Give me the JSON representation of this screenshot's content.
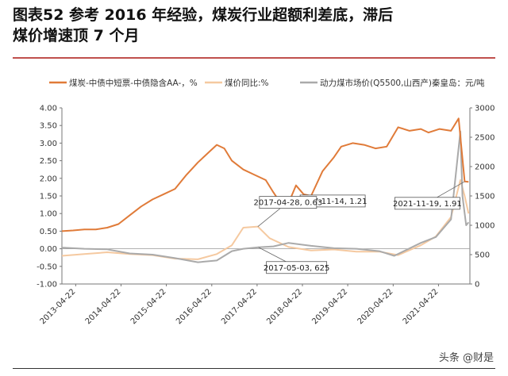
{
  "header": {
    "title_line1": "图表52    参考 2016 年经验，煤炭行业超额利差底，滞后",
    "title_line2": "煤价增速顶 7 个月"
  },
  "watermark": "头条 @财是",
  "chart_data": {
    "type": "line",
    "title": "",
    "legend": [
      {
        "name": "煤炭-中债中短票-中债隐含AA-，%",
        "color": "#e07b39"
      },
      {
        "name": "煤价同比:%",
        "color": "#f5c9a0"
      },
      {
        "name": "动力煤市场价(Q5500,山西产)秦皇岛：元/吨",
        "color": "#aaaaaa"
      }
    ],
    "legend_position": "top",
    "x_ticks": [
      "2013-04-22",
      "2014-04-22",
      "2015-04-22",
      "2016-04-22",
      "2017-04-22",
      "2018-04-22",
      "2019-04-22",
      "2020-04-22",
      "2021-04-22"
    ],
    "x_range": [
      "2013-01-01",
      "2021-12-31"
    ],
    "y_left": {
      "ticks": [
        "-1.00",
        "-0.50",
        "0.00",
        "0.50",
        "1.00",
        "1.50",
        "2.00",
        "2.50",
        "3.00",
        "3.50",
        "4.00"
      ],
      "range": [
        -1.0,
        4.0
      ]
    },
    "y_right": {
      "ticks": [
        "0",
        "500",
        "1000",
        "1500",
        "2000",
        "2500",
        "3000"
      ],
      "range": [
        0,
        3000
      ]
    },
    "annotations": [
      {
        "label": "2017-11-14, 1.21",
        "x": "2017-11-14",
        "y": 1.21,
        "axis": "left"
      },
      {
        "label": "2017-04-28, 0.63",
        "x": "2017-04-28",
        "y": 0.63,
        "axis": "left"
      },
      {
        "label": "2017-05-03, 625",
        "x": "2017-05-03",
        "y": 625,
        "axis": "right"
      },
      {
        "label": "2021-11-19, 1.91",
        "x": "2021-11-19",
        "y": 1.91,
        "axis": "left"
      }
    ],
    "series": [
      {
        "name": "煤炭-中债中短票-中债隐含AA-，%",
        "axis": "left",
        "color": "#e07b39",
        "points": [
          [
            "2013-01-01",
            0.5
          ],
          [
            "2013-04-01",
            0.52
          ],
          [
            "2013-07-01",
            0.55
          ],
          [
            "2013-10-01",
            0.55
          ],
          [
            "2014-01-01",
            0.6
          ],
          [
            "2014-04-01",
            0.7
          ],
          [
            "2014-07-01",
            0.95
          ],
          [
            "2014-10-01",
            1.2
          ],
          [
            "2015-01-01",
            1.4
          ],
          [
            "2015-04-01",
            1.55
          ],
          [
            "2015-07-01",
            1.7
          ],
          [
            "2015-10-01",
            2.1
          ],
          [
            "2016-01-01",
            2.45
          ],
          [
            "2016-04-01",
            2.75
          ],
          [
            "2016-06-01",
            2.95
          ],
          [
            "2016-08-01",
            2.85
          ],
          [
            "2016-10-01",
            2.5
          ],
          [
            "2017-01-01",
            2.25
          ],
          [
            "2017-04-01",
            2.1
          ],
          [
            "2017-07-01",
            1.95
          ],
          [
            "2017-09-01",
            1.6
          ],
          [
            "2017-11-14",
            1.21
          ],
          [
            "2018-01-01",
            1.3
          ],
          [
            "2018-03-01",
            1.8
          ],
          [
            "2018-05-01",
            1.55
          ],
          [
            "2018-07-01",
            1.5
          ],
          [
            "2018-10-01",
            2.2
          ],
          [
            "2019-01-01",
            2.6
          ],
          [
            "2019-03-01",
            2.9
          ],
          [
            "2019-06-01",
            3.0
          ],
          [
            "2019-09-01",
            2.95
          ],
          [
            "2019-12-01",
            2.85
          ],
          [
            "2020-03-01",
            2.9
          ],
          [
            "2020-06-01",
            3.45
          ],
          [
            "2020-09-01",
            3.35
          ],
          [
            "2020-12-01",
            3.4
          ],
          [
            "2021-02-01",
            3.3
          ],
          [
            "2021-05-01",
            3.4
          ],
          [
            "2021-08-01",
            3.35
          ],
          [
            "2021-10-01",
            3.7
          ],
          [
            "2021-11-19",
            1.91
          ],
          [
            "2021-12-20",
            1.9
          ]
        ]
      },
      {
        "name": "煤价同比:%",
        "axis": "left",
        "color": "#f5c9a0",
        "points": [
          [
            "2013-01-01",
            -0.2
          ],
          [
            "2013-07-01",
            -0.15
          ],
          [
            "2014-01-01",
            -0.1
          ],
          [
            "2014-07-01",
            -0.15
          ],
          [
            "2015-01-01",
            -0.18
          ],
          [
            "2015-07-01",
            -0.28
          ],
          [
            "2016-01-01",
            -0.3
          ],
          [
            "2016-06-01",
            -0.15
          ],
          [
            "2016-10-01",
            0.1
          ],
          [
            "2017-01-01",
            0.6
          ],
          [
            "2017-04-28",
            0.63
          ],
          [
            "2017-08-01",
            0.3
          ],
          [
            "2018-01-01",
            0.05
          ],
          [
            "2018-07-01",
            -0.05
          ],
          [
            "2019-01-01",
            -0.02
          ],
          [
            "2019-07-01",
            -0.08
          ],
          [
            "2020-01-01",
            -0.08
          ],
          [
            "2020-06-01",
            -0.18
          ],
          [
            "2020-12-01",
            0.1
          ],
          [
            "2021-04-01",
            0.35
          ],
          [
            "2021-08-01",
            0.9
          ],
          [
            "2021-10-15",
            1.95
          ],
          [
            "2021-11-19",
            1.5
          ],
          [
            "2021-12-20",
            1.0
          ]
        ]
      },
      {
        "name": "动力煤市场价(Q5500,山西产)秦皇岛：元/吨",
        "axis": "right",
        "color": "#aaaaaa",
        "points": [
          [
            "2013-01-01",
            620
          ],
          [
            "2013-07-01",
            600
          ],
          [
            "2014-01-01",
            590
          ],
          [
            "2014-07-01",
            520
          ],
          [
            "2015-01-01",
            500
          ],
          [
            "2015-07-01",
            440
          ],
          [
            "2016-01-01",
            370
          ],
          [
            "2016-06-01",
            400
          ],
          [
            "2016-10-01",
            560
          ],
          [
            "2017-01-01",
            600
          ],
          [
            "2017-05-03",
            625
          ],
          [
            "2017-09-01",
            640
          ],
          [
            "2018-01-01",
            700
          ],
          [
            "2018-07-01",
            650
          ],
          [
            "2019-01-01",
            610
          ],
          [
            "2019-07-01",
            600
          ],
          [
            "2020-01-01",
            560
          ],
          [
            "2020-05-01",
            480
          ],
          [
            "2020-12-01",
            700
          ],
          [
            "2021-04-01",
            800
          ],
          [
            "2021-08-01",
            1100
          ],
          [
            "2021-10-15",
            2600
          ],
          [
            "2021-11-01",
            1500
          ],
          [
            "2021-12-01",
            1000
          ],
          [
            "2021-12-20",
            1050
          ]
        ]
      }
    ]
  }
}
